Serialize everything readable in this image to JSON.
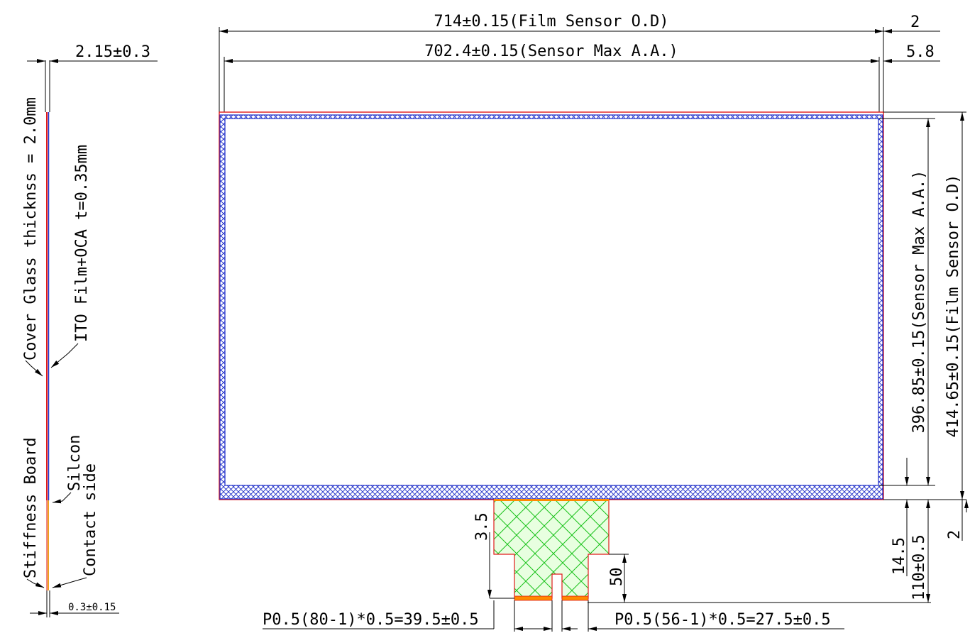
{
  "dimensions": {
    "film_width": "714±0.15(Film Sensor O.D)",
    "sensor_width": "702.4±0.15(Sensor Max A.A.)",
    "right_top_2": "2",
    "right_top_58": "5.8",
    "sensor_height": "396.85±0.15(Sensor Max A.A.)",
    "film_height": "414.65±0.15(Film Sensor O.D)",
    "right_bottom_2": "2",
    "tail_145": "14.5",
    "tail_110": "110±0.5",
    "fpc_35": "3.5",
    "fpc_50": "50",
    "pitch_left": "P0.5(80-1)*0.5=39.5±0.5",
    "pitch_right": "P0.5(56-1)*0.5=27.5±0.5",
    "side_thickness": "2.15±0.3",
    "side_bottom": "0.3±0.15"
  },
  "side_labels": {
    "cover_glass": "Cover Glass thicknss = 2.0mm",
    "ito_film": "ITO Film+OCA t=0.35mm",
    "stiffness_board": "Stiffness Board",
    "silcon": "Silcon",
    "contact_side": "Contact side"
  },
  "colors": {
    "outline": "#e01a1a",
    "hatch": "#1c2bc8",
    "fpc_hatch": "#19c21a",
    "fpc_fill": "#e8ffe0",
    "contact": "#ff8a00",
    "stiffener": "#f0a020"
  }
}
